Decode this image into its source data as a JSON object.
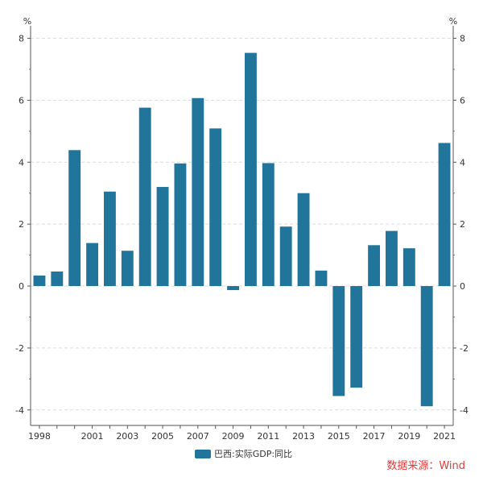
{
  "chart_data": {
    "type": "bar",
    "categories": [
      "1998",
      "1999",
      "2000",
      "2001",
      "2002",
      "2003",
      "2004",
      "2005",
      "2006",
      "2007",
      "2008",
      "2009",
      "2010",
      "2011",
      "2012",
      "2013",
      "2014",
      "2015",
      "2016",
      "2017",
      "2018",
      "2019",
      "2020",
      "2021"
    ],
    "x_tick_labels": [
      "1998",
      "2001",
      "2003",
      "2005",
      "2007",
      "2009",
      "2011",
      "2013",
      "2015",
      "2017",
      "2019",
      "2021"
    ],
    "series": [
      {
        "name": "巴西:实际GDP:同比",
        "color": "#21759b",
        "values": [
          0.34,
          0.47,
          4.39,
          1.39,
          3.05,
          1.14,
          5.76,
          3.2,
          3.96,
          6.07,
          5.09,
          -0.13,
          7.53,
          3.97,
          1.92,
          3.0,
          0.5,
          -3.55,
          -3.28,
          1.32,
          1.78,
          1.22,
          -3.88,
          4.62
        ]
      }
    ],
    "ylim": [
      -4.5,
      8.3
    ],
    "y_ticks": [
      -4,
      -2,
      0,
      2,
      4,
      6,
      8
    ],
    "y_unit_left": "%",
    "y_unit_right": "%",
    "grid": true,
    "legend_position": "bottom-center"
  },
  "source_text": "数据来源：Wind",
  "source_color": "#e03a3a"
}
